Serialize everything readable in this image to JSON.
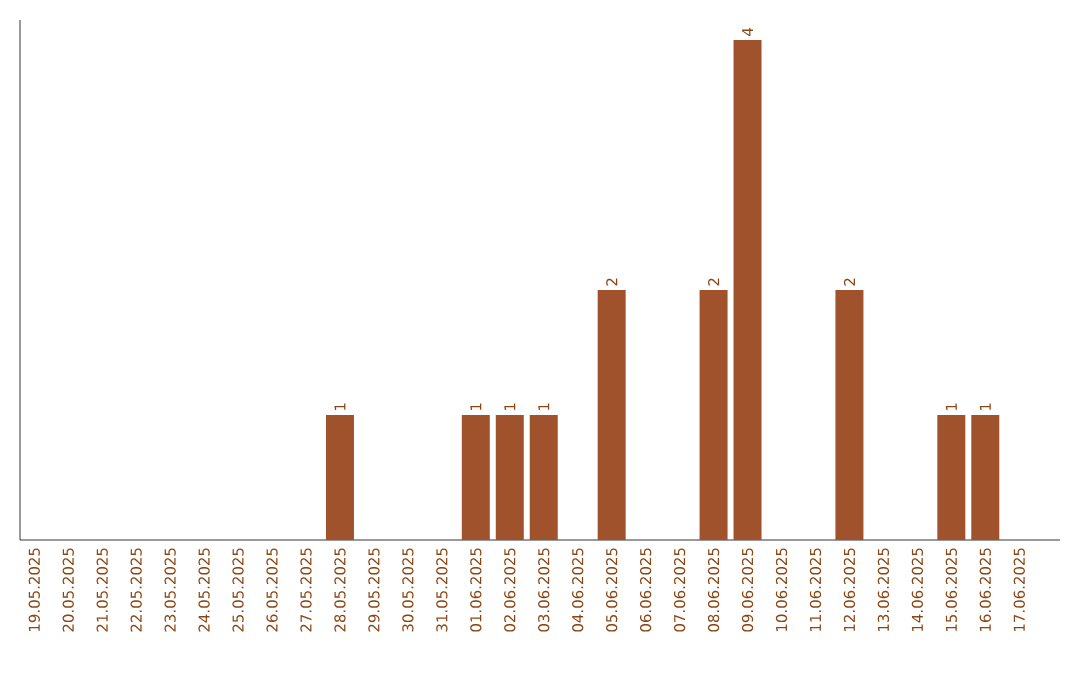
{
  "chart_data": {
    "type": "bar",
    "categories": [
      "19.05.2025",
      "20.05.2025",
      "21.05.2025",
      "22.05.2025",
      "23.05.2025",
      "24.05.2025",
      "25.05.2025",
      "26.05.2025",
      "27.05.2025",
      "28.05.2025",
      "29.05.2025",
      "30.05.2025",
      "31.05.2025",
      "01.06.2025",
      "02.06.2025",
      "03.06.2025",
      "04.06.2025",
      "05.06.2025",
      "06.06.2025",
      "07.06.2025",
      "08.06.2025",
      "09.06.2025",
      "10.06.2025",
      "11.06.2025",
      "12.06.2025",
      "13.06.2025",
      "14.06.2025",
      "15.06.2025",
      "16.06.2025",
      "17.06.2025"
    ],
    "values": [
      0,
      0,
      0,
      0,
      0,
      0,
      0,
      0,
      0,
      1,
      0,
      0,
      0,
      1,
      1,
      1,
      0,
      2,
      0,
      0,
      2,
      4,
      0,
      0,
      2,
      0,
      0,
      1,
      1,
      0
    ],
    "value_labels": [
      null,
      null,
      null,
      null,
      null,
      null,
      null,
      null,
      null,
      "1",
      null,
      null,
      null,
      "1",
      "1",
      "1",
      null,
      "2",
      null,
      null,
      "2",
      "4",
      null,
      null,
      "2",
      null,
      null,
      "1",
      "1",
      null
    ],
    "color": "#a0522d",
    "ylim": [
      0,
      4.16
    ],
    "tick_labels": "x"
  }
}
